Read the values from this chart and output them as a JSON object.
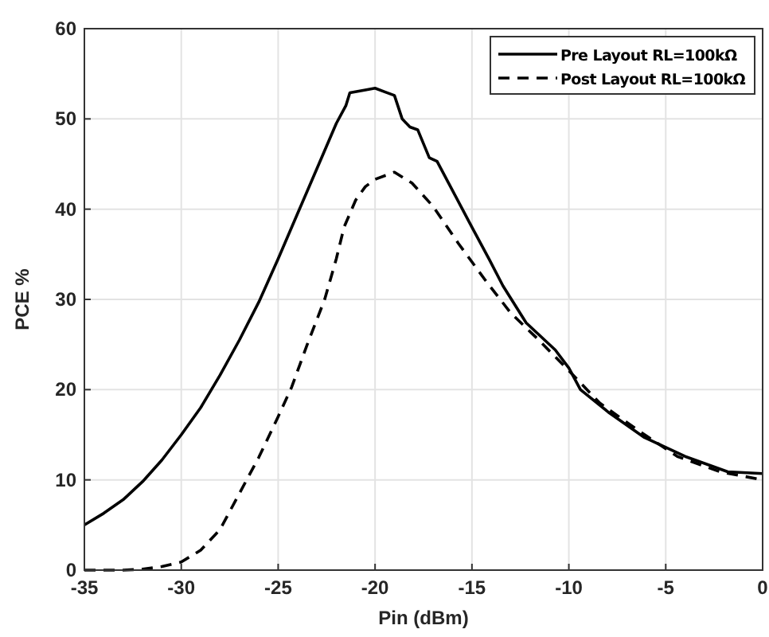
{
  "chart_data": {
    "type": "line",
    "xlabel": "Pin (dBm)",
    "ylabel": "PCE %",
    "xlim": [
      -35,
      0
    ],
    "ylim": [
      0,
      60
    ],
    "xticks": [
      -35,
      -30,
      -25,
      -20,
      -15,
      -10,
      -5,
      0
    ],
    "yticks": [
      0,
      10,
      20,
      30,
      40,
      50,
      60
    ],
    "grid": true,
    "legend": "top right",
    "series": [
      {
        "name": "Pre Layout RL=100kΩ",
        "color": "#000000",
        "line_style": "solid",
        "x": [
          -35,
          -34,
          -33,
          -32,
          -31,
          -30,
          -29,
          -28,
          -27,
          -26,
          -25,
          -24,
          -23,
          -22,
          -21.5,
          -21.3,
          -20.5,
          -20,
          -19.5,
          -19,
          -18.6,
          -18.2,
          -17.8,
          -17.2,
          -16.8,
          -15,
          -14.1,
          -13.4,
          -12.2,
          -10.7,
          -10,
          -9.4,
          -7.9,
          -6.1,
          -4,
          -1.8,
          0
        ],
        "values": [
          5,
          6.3,
          7.8,
          9.8,
          12.2,
          15,
          18,
          21.6,
          25.5,
          29.7,
          34.5,
          39.5,
          44.5,
          49.5,
          51.5,
          52.9,
          53.2,
          53.4,
          53,
          52.6,
          50,
          49.1,
          48.8,
          45.7,
          45.3,
          38,
          34.4,
          31.5,
          27.4,
          24.4,
          22.4,
          20,
          17.4,
          14.7,
          12.6,
          10.9,
          10.7
        ]
      },
      {
        "name": "Post Layout RL=100kΩ",
        "color": "#000000",
        "line_style": "dashed",
        "x": [
          -35,
          -33,
          -32,
          -31,
          -30,
          -29,
          -28,
          -27,
          -26,
          -25,
          -24.3,
          -23.5,
          -22.6,
          -22,
          -21.6,
          -21,
          -20.5,
          -20,
          -19,
          -18.1,
          -17,
          -15.7,
          -14.3,
          -13,
          -11.6,
          -10,
          -8.4,
          -6.5,
          -4.4,
          -2.2,
          0
        ],
        "values": [
          0,
          0,
          0.1,
          0.4,
          0.9,
          2.2,
          4.5,
          8.5,
          12.5,
          17,
          20.3,
          25,
          30,
          34.5,
          38,
          41,
          42.5,
          43.3,
          44.1,
          42.9,
          40.3,
          36.2,
          32.1,
          28.5,
          25.6,
          22.1,
          18.5,
          15.6,
          12.6,
          10.9,
          10
        ]
      }
    ]
  }
}
